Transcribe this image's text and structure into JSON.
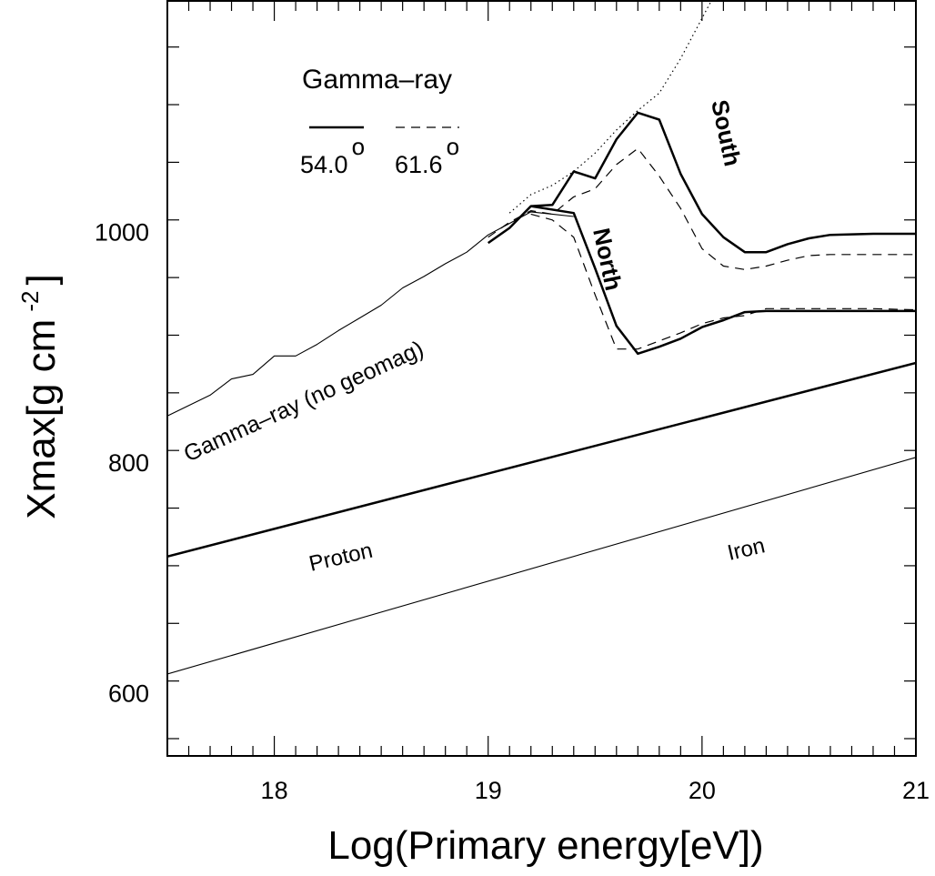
{
  "chart_data": {
    "type": "line",
    "xlabel": "Log(Primary energy[eV])",
    "ylabel": "Xmax[g cm",
    "ylabel_sup": "-2",
    "ylabel_end": "]",
    "xlim": [
      17.5,
      21
    ],
    "ylim": [
      545,
      1200
    ],
    "x_ticks": [
      18,
      19,
      20,
      21
    ],
    "y_ticks": [
      600,
      800,
      1000
    ],
    "legend": {
      "title": "Gamma–ray",
      "entries": [
        {
          "label": "54.0",
          "sup": "o",
          "style": "solid"
        },
        {
          "label": "61.6",
          "sup": "o",
          "style": "dashed"
        }
      ]
    },
    "annotations": {
      "no_geomag": "Gamma–ray (no geomag)",
      "proton": "Proton",
      "iron": "Iron",
      "north": "North",
      "south": "South"
    },
    "series": [
      {
        "style": "thin-solid",
        "x": [
          17.5,
          17.7,
          17.8,
          17.9,
          18.0,
          18.1,
          18.2,
          18.3,
          18.4,
          18.5,
          18.6,
          18.7,
          18.8,
          18.9,
          19.0,
          19.1,
          19.2,
          19.3,
          19.4
        ],
        "y": [
          840,
          858,
          872,
          876,
          892,
          892,
          902,
          914,
          925,
          936,
          951,
          961,
          972,
          982,
          997,
          1007,
          1017,
          1015,
          1013
        ]
      },
      {
        "style": "dotted",
        "x": [
          19.1,
          19.2,
          19.3,
          19.4,
          19.5,
          19.6,
          19.7,
          19.8,
          19.9,
          20.0,
          20.1
        ],
        "y": [
          1016,
          1032,
          1040,
          1052,
          1068,
          1088,
          1105,
          1120,
          1150,
          1185,
          1220
        ]
      },
      {
        "style": "proton",
        "x": [
          17.5,
          21
        ],
        "y": [
          718,
          886
        ]
      },
      {
        "style": "iron",
        "x": [
          17.5,
          21
        ],
        "y": [
          616,
          804
        ]
      },
      {
        "style": "south-54",
        "x": [
          19.0,
          19.1,
          19.2,
          19.3,
          19.4,
          19.5,
          19.6,
          19.7,
          19.8,
          19.9,
          20.0,
          20.1,
          20.2,
          20.3,
          20.4,
          20.5,
          20.6,
          20.8,
          21.0
        ],
        "y": [
          990,
          1003,
          1022,
          1023,
          1052,
          1046,
          1080,
          1103,
          1097,
          1050,
          1015,
          995,
          982,
          982,
          989,
          994,
          997,
          998,
          998
        ]
      },
      {
        "style": "south-61",
        "x": [
          19.0,
          19.1,
          19.2,
          19.3,
          19.4,
          19.5,
          19.6,
          19.7,
          19.8,
          19.9,
          20.0,
          20.1,
          20.2,
          20.3,
          20.4,
          20.5,
          20.6,
          20.8,
          21.0
        ],
        "y": [
          995,
          1008,
          1018,
          1015,
          1030,
          1037,
          1058,
          1072,
          1048,
          1020,
          985,
          970,
          967,
          970,
          975,
          979,
          980,
          980,
          980
        ]
      },
      {
        "style": "north-54",
        "x": [
          19.2,
          19.4,
          19.5,
          19.6,
          19.7,
          19.8,
          19.9,
          20.0,
          20.1,
          20.2,
          20.3,
          20.5,
          20.8,
          21.0
        ],
        "y": [
          1022,
          1016,
          968,
          918,
          894,
          900,
          907,
          917,
          923,
          930,
          931,
          931,
          931,
          931
        ]
      },
      {
        "style": "north-61",
        "x": [
          19.2,
          19.3,
          19.4,
          19.5,
          19.6,
          19.7,
          19.8,
          19.9,
          20.0,
          20.1,
          20.2,
          20.3,
          20.5,
          20.8,
          21.0
        ],
        "y": [
          1015,
          1010,
          995,
          945,
          898,
          898,
          905,
          912,
          920,
          925,
          927,
          933,
          933,
          933,
          932
        ]
      }
    ]
  }
}
